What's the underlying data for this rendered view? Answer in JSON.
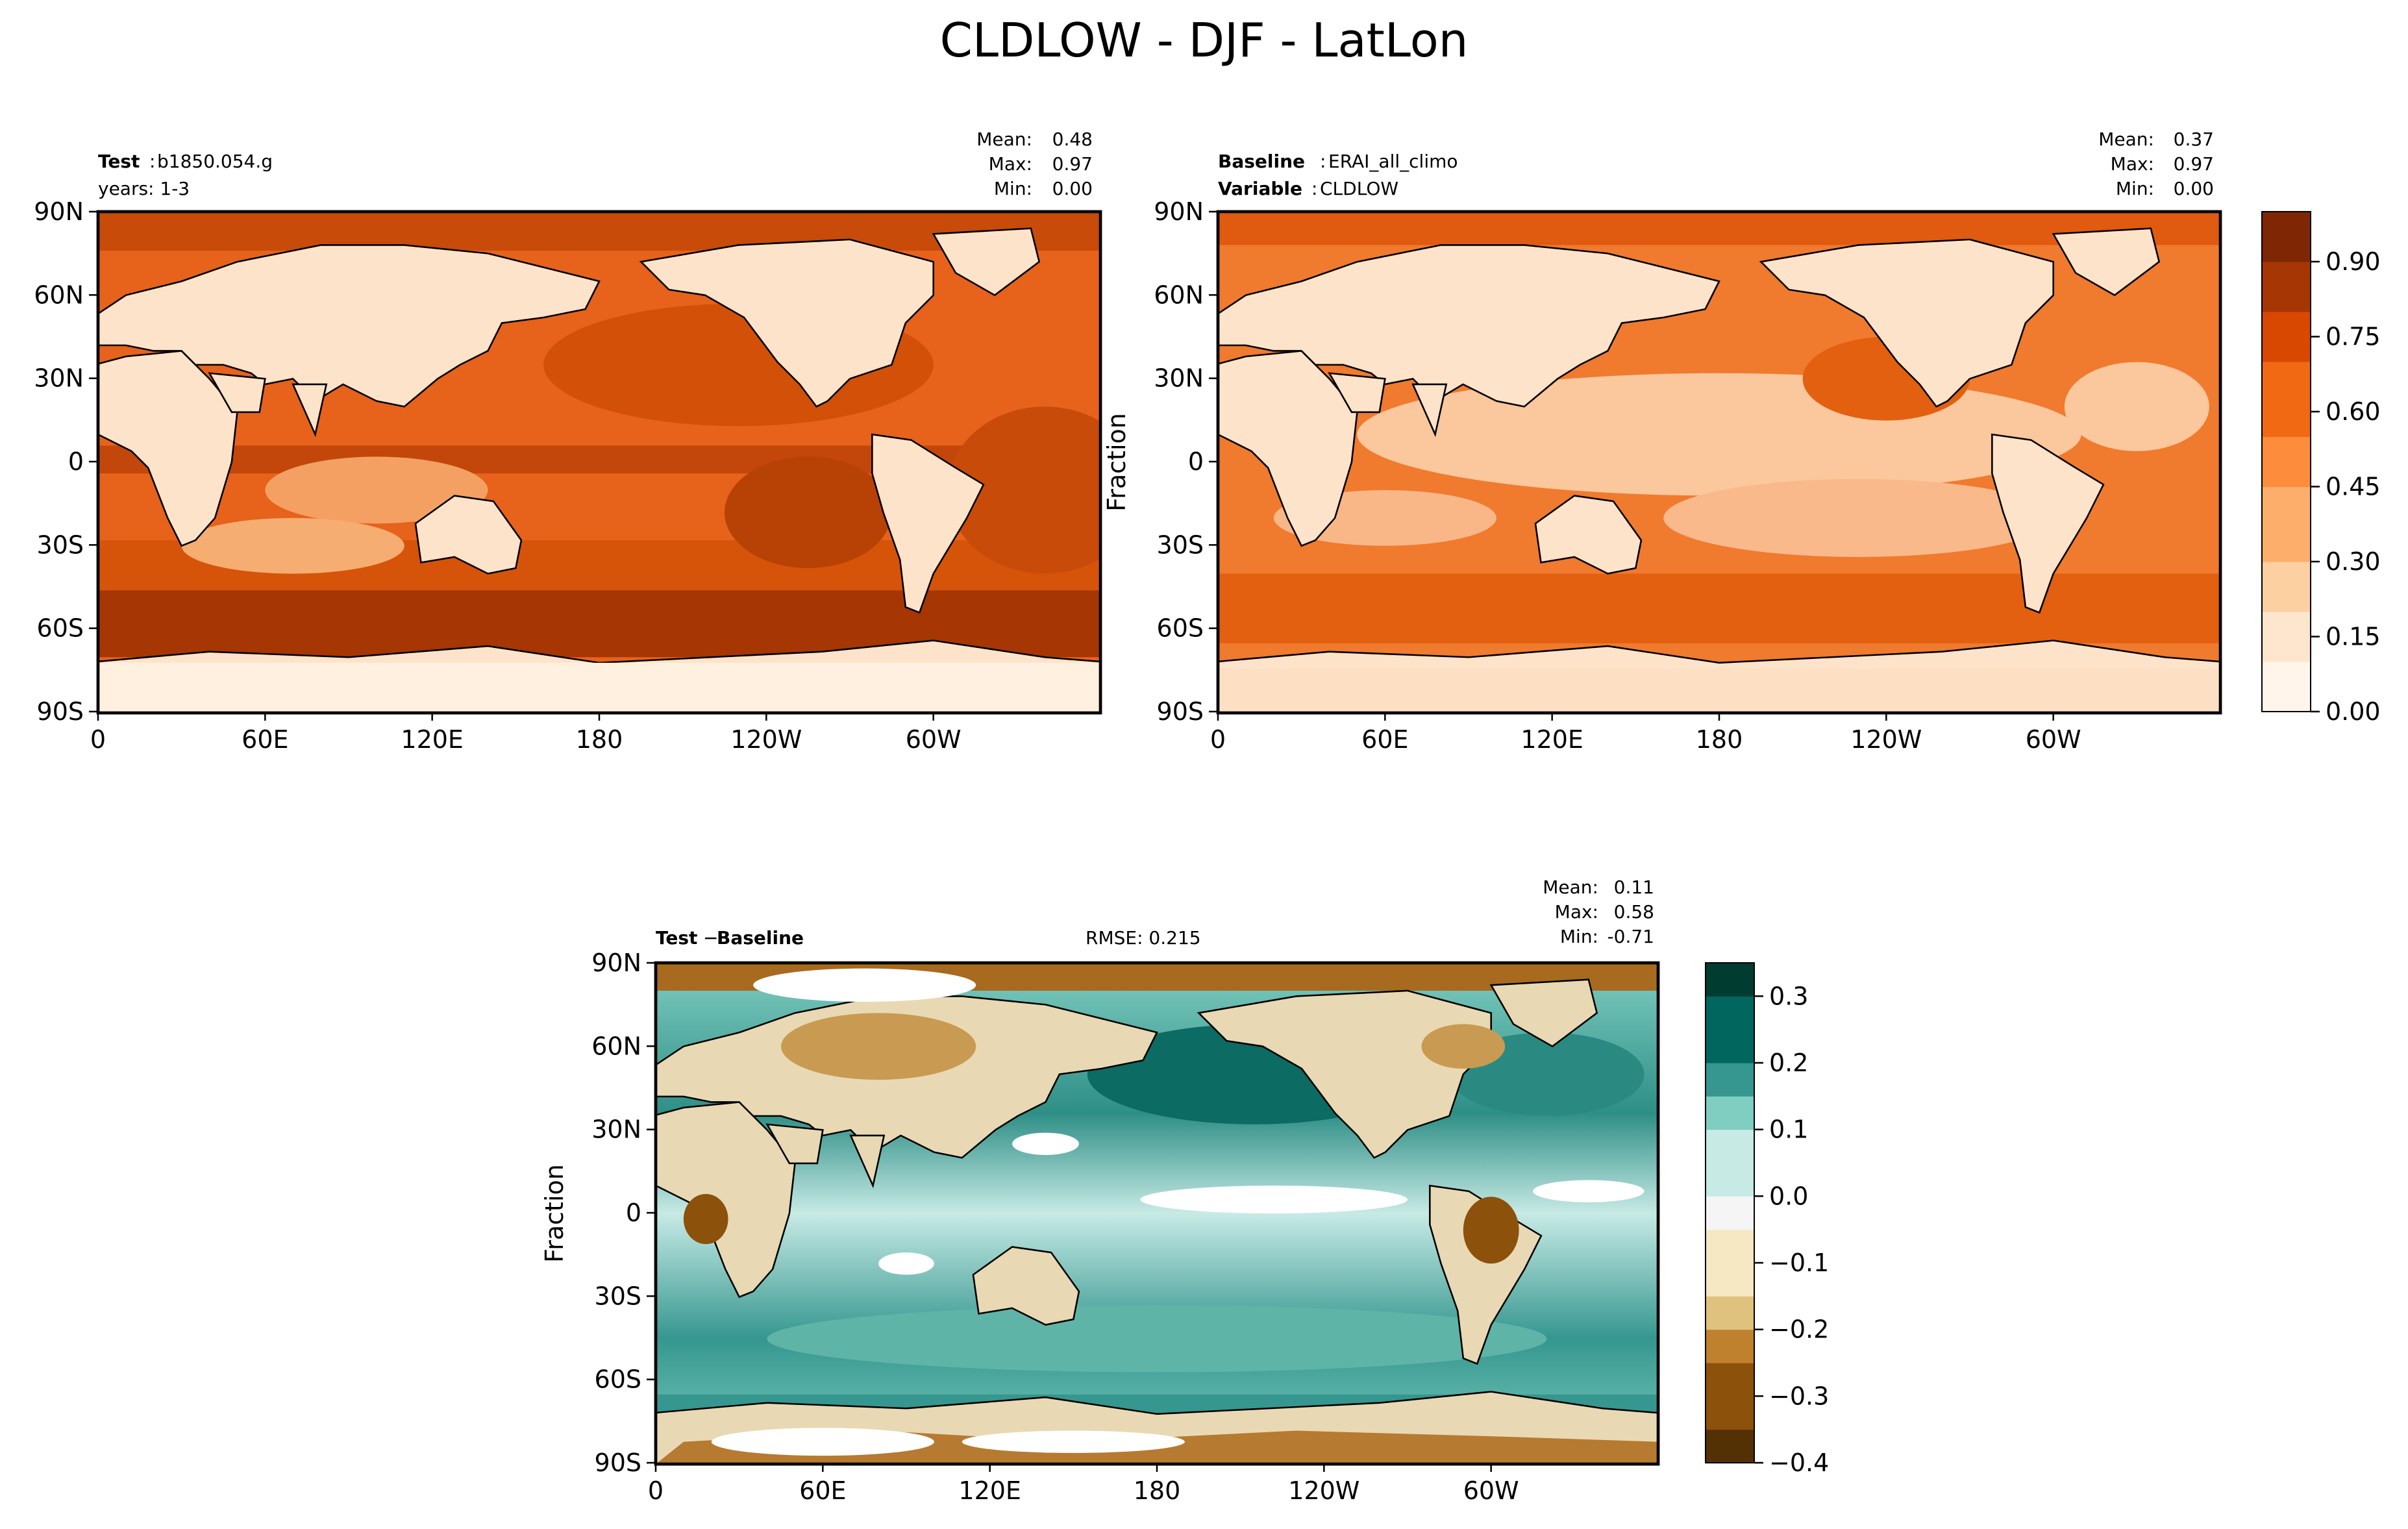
{
  "title": "CLDLOW - DJF - LatLon",
  "lon_ticks": [
    "0",
    "60E",
    "120E",
    "180",
    "120W",
    "60W"
  ],
  "lat_ticks": [
    "90N",
    "60N",
    "30N",
    "0",
    "30S",
    "60S",
    "90S"
  ],
  "stats_labels": {
    "mean": "Mean:",
    "max": "Max:",
    "min": "Min:"
  },
  "panels": {
    "test": {
      "label_bold": "Test",
      "label_sep": ":",
      "label_value": "b1850.054.g",
      "line2": "years: 1-3",
      "mean": "0.48",
      "max": "0.97",
      "min": "0.00"
    },
    "baseline": {
      "label_bold": "Baseline",
      "label_sep": ":",
      "label_value": "ERAI_all_climo",
      "line2_bold": "Variable",
      "line2_sep": ":",
      "line2_value": "CLDLOW",
      "ylabel": "Fraction",
      "mean": "0.37",
      "max": "0.97",
      "min": "0.00"
    },
    "diff": {
      "label_a": "Test",
      "label_op": "−",
      "label_b": "Baseline",
      "rmse": "RMSE: 0.215",
      "ylabel": "Fraction",
      "mean": "0.11",
      "max": "0.58",
      "min": "-0.71"
    }
  },
  "colorbars": {
    "seq": {
      "ticks": [
        "0.00",
        "0.15",
        "0.30",
        "0.45",
        "0.60",
        "0.75",
        "0.90"
      ],
      "colors": [
        "#fff5eb",
        "#fee6ce",
        "#fdd0a2",
        "#fdae6b",
        "#fd8d3c",
        "#f16913",
        "#d94801",
        "#a63603",
        "#7f2704"
      ]
    },
    "div": {
      "ticks": [
        "0.3",
        "0.2",
        "0.1",
        "0.0",
        "−0.1",
        "−0.2",
        "−0.3",
        "−0.4"
      ],
      "colors": [
        "#543005",
        "#8c510a",
        "#bf812d",
        "#dfc27d",
        "#f6e8c3",
        "#f5f5f5",
        "#c7eae5",
        "#80cdc1",
        "#35978f",
        "#01665e",
        "#003c30"
      ]
    }
  },
  "chart_data": [
    {
      "type": "heatmap",
      "projection": "equirectangular",
      "title": "Test : b1850.054.g",
      "variable": "CLDLOW",
      "season": "DJF",
      "xlim": [
        0,
        360
      ],
      "ylim": [
        -90,
        90
      ],
      "colorbar_range": [
        0.0,
        1.0
      ],
      "stats": {
        "mean": 0.48,
        "max": 0.97,
        "min": 0.0
      }
    },
    {
      "type": "heatmap",
      "projection": "equirectangular",
      "title": "Baseline : ERAI_all_climo",
      "variable": "CLDLOW",
      "season": "DJF",
      "ylabel": "Fraction",
      "xlim": [
        0,
        360
      ],
      "ylim": [
        -90,
        90
      ],
      "colorbar_range": [
        0.0,
        1.0
      ],
      "stats": {
        "mean": 0.37,
        "max": 0.97,
        "min": 0.0
      }
    },
    {
      "type": "heatmap",
      "projection": "equirectangular",
      "title": "Test − Baseline",
      "ylabel": "Fraction",
      "xlim": [
        0,
        360
      ],
      "ylim": [
        -90,
        90
      ],
      "colorbar_range": [
        -0.4,
        0.35
      ],
      "rmse": 0.215,
      "stats": {
        "mean": 0.11,
        "max": 0.58,
        "min": -0.71
      }
    }
  ]
}
